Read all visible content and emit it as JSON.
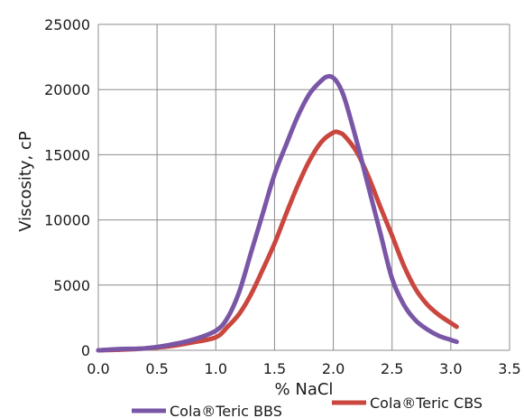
{
  "chart_data": {
    "type": "line",
    "title": "",
    "xlabel": "% NaCl",
    "ylabel": "Viscosity, cP",
    "xlim": [
      0.0,
      3.5
    ],
    "ylim": [
      0,
      25000
    ],
    "x_ticks": [
      "0.0",
      "0.5",
      "1.0",
      "1.5",
      "2.0",
      "2.5",
      "3.0",
      "3.5"
    ],
    "y_ticks": [
      "0",
      "5000",
      "10000",
      "15000",
      "20000",
      "25000"
    ],
    "grid": true,
    "legend_position": "bottom",
    "series": [
      {
        "name": "Cola®Teric BBS",
        "color": "#7a56a6",
        "x": [
          0.0,
          0.2,
          0.4,
          0.6,
          0.8,
          1.0,
          1.1,
          1.2,
          1.3,
          1.4,
          1.5,
          1.6,
          1.7,
          1.8,
          1.9,
          1.95,
          2.0,
          2.05,
          2.1,
          2.2,
          2.3,
          2.4,
          2.5,
          2.6,
          2.7,
          2.8,
          2.9,
          3.0,
          3.05
        ],
        "y": [
          0,
          100,
          150,
          400,
          800,
          1500,
          2500,
          4500,
          7500,
          10500,
          13500,
          15800,
          18000,
          19700,
          20700,
          21000,
          20900,
          20300,
          19200,
          16000,
          12500,
          9000,
          5500,
          3500,
          2300,
          1600,
          1100,
          800,
          650
        ]
      },
      {
        "name": "Cola®Teric CBS",
        "color": "#c9473f",
        "x": [
          0.0,
          0.2,
          0.4,
          0.6,
          0.8,
          1.0,
          1.1,
          1.2,
          1.3,
          1.4,
          1.5,
          1.6,
          1.7,
          1.8,
          1.9,
          2.0,
          2.05,
          2.1,
          2.2,
          2.3,
          2.4,
          2.5,
          2.6,
          2.7,
          2.8,
          2.9,
          3.0,
          3.05
        ],
        "y": [
          0,
          50,
          150,
          300,
          600,
          1000,
          1800,
          2800,
          4300,
          6200,
          8200,
          10500,
          12700,
          14600,
          16000,
          16700,
          16700,
          16400,
          15200,
          13300,
          11000,
          8800,
          6500,
          4700,
          3500,
          2700,
          2100,
          1800
        ]
      }
    ]
  }
}
